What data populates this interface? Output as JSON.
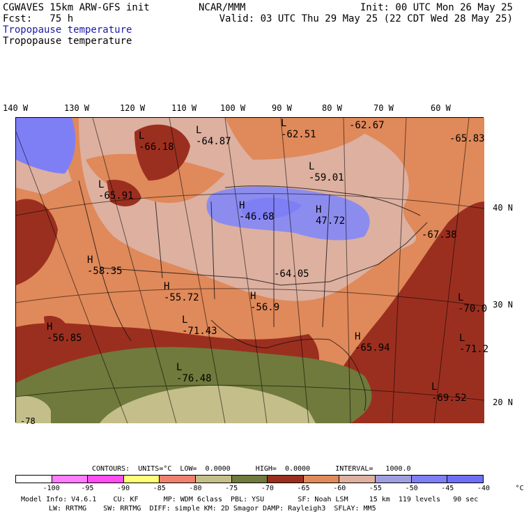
{
  "header": {
    "model_line": "CGWAVES 15km ARW-GFS init",
    "fcst_line": "Fcst:   75 h",
    "field_blue": "Tropopause temperature",
    "field_black": "Tropopause temperature",
    "center": "NCAR/MMM",
    "init": "Init: 00 UTC Mon 26 May 25",
    "valid": "Valid: 03 UTC Thu 29 May 25 (22 CDT Wed 28 May 25)"
  },
  "longitudes": [
    "140 W",
    "130 W",
    "120 W",
    "110 W",
    "100 W",
    "90 W",
    "80 W",
    "70 W",
    "60 W"
  ],
  "latitudes": [
    "40 N",
    "30 N",
    "20 N"
  ],
  "extrema": [
    {
      "type": "L",
      "value": "-62.51"
    },
    {
      "type": "",
      "value": "-62.67"
    },
    {
      "type": "L",
      "value": "-66.18"
    },
    {
      "type": "L",
      "value": "-64.87"
    },
    {
      "type": "",
      "value": "-65.83"
    },
    {
      "type": "L",
      "value": "-59.01"
    },
    {
      "type": "L",
      "value": "-65.91"
    },
    {
      "type": "H",
      "value": "-46.68"
    },
    {
      "type": "H",
      "value": "47.72"
    },
    {
      "type": "",
      "value": "-67.38"
    },
    {
      "type": "H",
      "value": "-58.35"
    },
    {
      "type": "",
      "value": "-64.05"
    },
    {
      "type": "H",
      "value": "-55.72"
    },
    {
      "type": "H",
      "value": "-56.9"
    },
    {
      "type": "L",
      "value": "-70.0"
    },
    {
      "type": "L",
      "value": "-71.43"
    },
    {
      "type": "H",
      "value": "-56.85"
    },
    {
      "type": "H",
      "value": "-65.94"
    },
    {
      "type": "L",
      "value": "-71.2"
    },
    {
      "type": "L",
      "value": "-76.48"
    },
    {
      "type": "L",
      "value": "-69.52"
    },
    {
      "type": "",
      "value": "-78"
    }
  ],
  "colorbar": {
    "title": "CONTOURS:  UNITS=°C  LOW=  0.0000      HIGH=  0.0000      INTERVAL=   1000.0",
    "ticks": [
      "-100",
      "-95",
      "-90",
      "-85",
      "-80",
      "-75",
      "-70",
      "-65",
      "-60",
      "-55",
      "-50",
      "-45",
      "-40",
      "°C"
    ],
    "colors": [
      "#ffffff",
      "#ff7dff",
      "#ff4df2",
      "#ffff7a",
      "#f08070",
      "#c4be8a",
      "#6f7a3c",
      "#9b2f1f",
      "#e0895a",
      "#ddb0a0",
      "#9f9fe0",
      "#7f7ff5",
      "#6f6ff6"
    ]
  },
  "model_info": {
    "line1": "Model Info: V4.6.1    CU: KF      MP: WDM 6class  PBL: YSU        SF: Noah LSM     15 km  119 levels   90 sec",
    "line2": "LW: RRTMG    SW: RRTMG  DIFF: simple KM: 2D Smagor DAMP: Rayleigh3  SFLAY: MM5"
  }
}
